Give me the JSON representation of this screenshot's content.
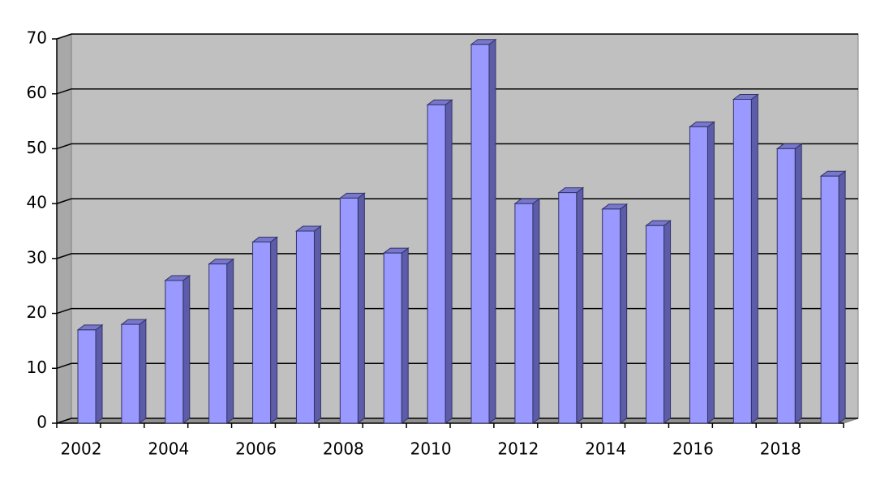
{
  "chart_data": {
    "type": "bar",
    "categories": [
      "2002",
      null,
      "2004",
      null,
      "2006",
      null,
      "2008",
      null,
      "2010",
      null,
      "2012",
      null,
      "2014",
      null,
      "2016",
      null,
      "2018",
      null
    ],
    "values": [
      17,
      18,
      26,
      29,
      33,
      35,
      41,
      31,
      58,
      69,
      40,
      42,
      39,
      36,
      54,
      59,
      50,
      45
    ],
    "color": "#9999ff",
    "ylim": [
      0,
      70
    ],
    "yticks": [
      0,
      10,
      20,
      30,
      40,
      50,
      60,
      70
    ],
    "grid": true
  }
}
